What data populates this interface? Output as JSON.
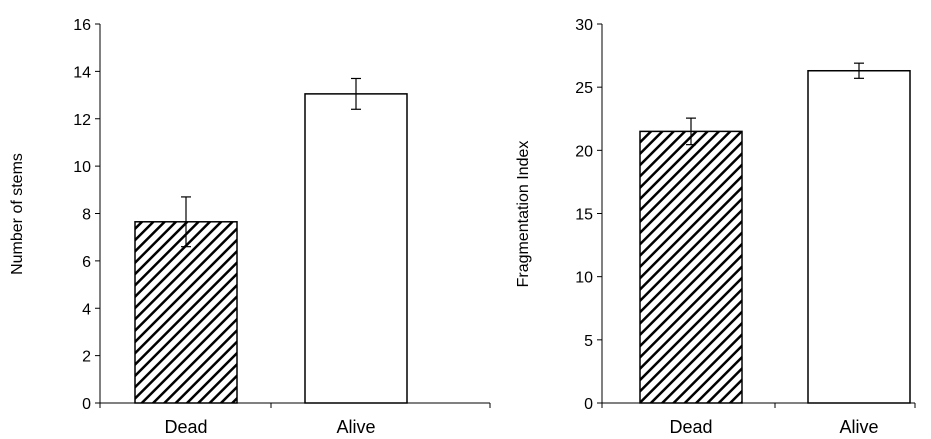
{
  "chart_data": [
    {
      "type": "bar",
      "title": "",
      "xlabel": "",
      "ylabel": "Number of stems",
      "categories": [
        "Dead",
        "Alive"
      ],
      "values": [
        7.65,
        13.05
      ],
      "error": [
        1.05,
        0.65
      ],
      "ylim": [
        0,
        16
      ],
      "yticks": [
        "0",
        "2",
        "4",
        "6",
        "8",
        "10",
        "12",
        "14",
        "16"
      ],
      "bar_styles": [
        "hatched",
        "white"
      ],
      "grid": false
    },
    {
      "type": "bar",
      "title": "",
      "xlabel": "",
      "ylabel": "Fragmentation Index",
      "categories": [
        "Dead",
        "Alive"
      ],
      "values": [
        21.5,
        26.3
      ],
      "error": [
        1.05,
        0.6
      ],
      "ylim": [
        0,
        30
      ],
      "yticks": [
        "0",
        "5",
        "10",
        "15",
        "20",
        "25",
        "30"
      ],
      "bar_styles": [
        "hatched",
        "white"
      ],
      "grid": false
    }
  ]
}
